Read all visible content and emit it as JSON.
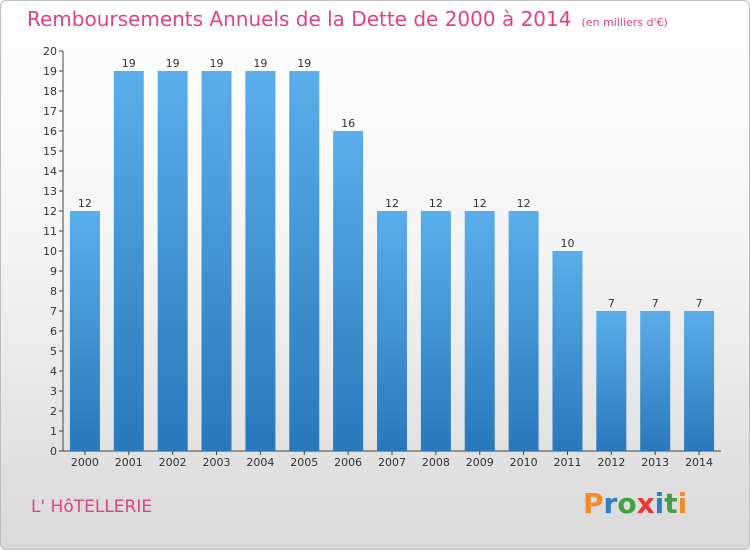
{
  "header": {
    "title": "Remboursements Annuels de la Dette de 2000 à 2014",
    "unit": "(en milliers d'€)"
  },
  "footer": {
    "commune": "L' HôTELLERIE",
    "logo": "Proxiti"
  },
  "colors": {
    "title": "#e0408a",
    "bar_top": "#5aaee9",
    "bar_bottom": "#2a78bc"
  },
  "chart_data": {
    "type": "bar",
    "title": "Remboursements Annuels de la Dette de 2000 à 2014",
    "ylabel": "en milliers d'€",
    "xlabel": "",
    "categories": [
      "2000",
      "2001",
      "2002",
      "2003",
      "2004",
      "2005",
      "2006",
      "2007",
      "2008",
      "2009",
      "2010",
      "2011",
      "2012",
      "2013",
      "2014"
    ],
    "values": [
      12,
      19,
      19,
      19,
      19,
      19,
      16,
      12,
      12,
      12,
      12,
      10,
      7,
      7,
      7
    ],
    "ylim": [
      0,
      20
    ],
    "yticks": [
      0,
      1,
      2,
      3,
      4,
      5,
      6,
      7,
      8,
      9,
      10,
      11,
      12,
      13,
      14,
      15,
      16,
      17,
      18,
      19,
      20
    ],
    "grid": false
  }
}
